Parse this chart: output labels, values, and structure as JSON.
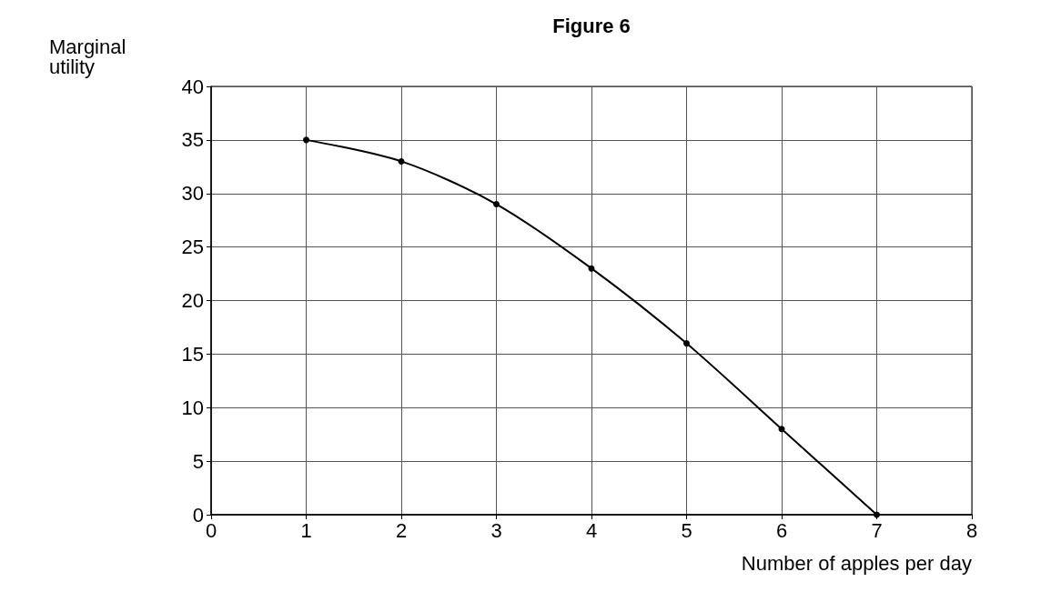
{
  "chart_data": {
    "type": "line",
    "title": "Figure 6",
    "xlabel": "Number of apples per day",
    "ylabel": "Marginal\nutility",
    "x": [
      1,
      2,
      3,
      4,
      5,
      6,
      7
    ],
    "series": [
      {
        "color": "#000000",
        "values": [
          35,
          33,
          29,
          23,
          16,
          8,
          0
        ]
      }
    ],
    "xlim": [
      0,
      8
    ],
    "xticks": [
      0,
      1,
      2,
      3,
      4,
      5,
      6,
      7,
      8
    ],
    "ylim": [
      0,
      40
    ],
    "yticks": [
      0,
      5,
      10,
      15,
      20,
      25,
      30,
      35,
      40
    ],
    "grid": true,
    "marker": "circle",
    "line_style": "solid"
  }
}
